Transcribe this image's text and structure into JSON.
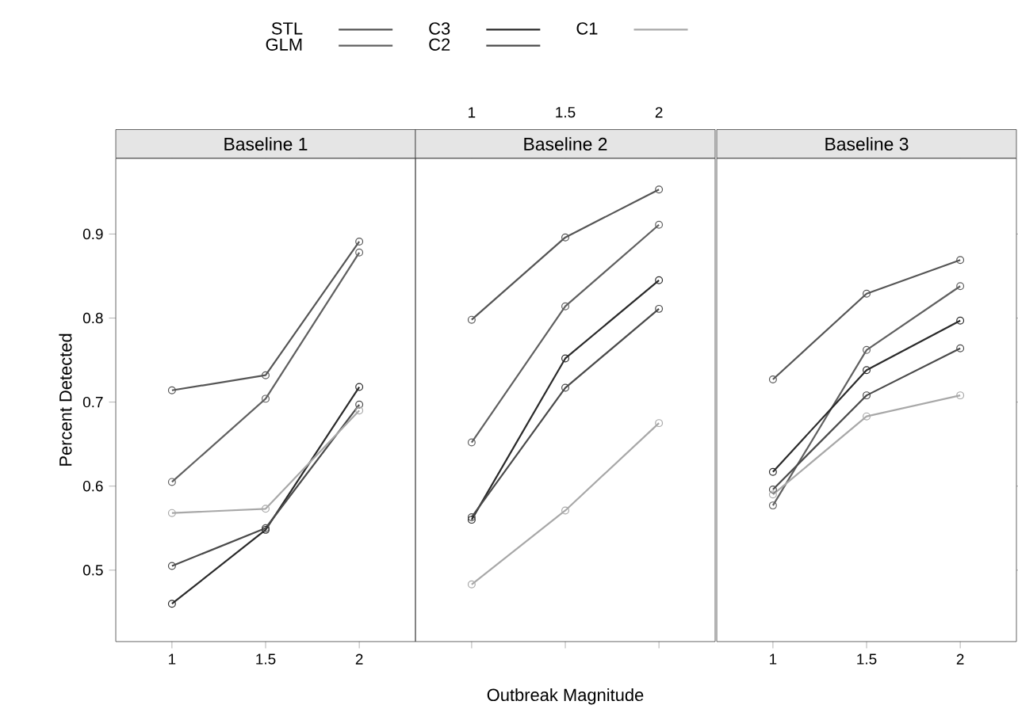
{
  "chart_data": [
    {
      "type": "line",
      "title": "Baseline 1",
      "ylabel": "Percent Detected",
      "x": [
        1,
        1.5,
        2
      ],
      "xlim": [
        0.7,
        2.3
      ],
      "ylim": [
        0.415,
        0.99
      ],
      "xticks": [
        1,
        1.5,
        2
      ],
      "yticks": [
        0.5,
        0.6,
        0.7,
        0.8,
        0.9
      ],
      "marker": "circle",
      "line_style": "solid",
      "legend": "top",
      "grid": false,
      "series": [
        {
          "name": "STL",
          "color": "#555555",
          "values": [
            0.714,
            0.732,
            0.891
          ]
        },
        {
          "name": "GLM",
          "color": "#606060",
          "values": [
            0.605,
            0.704,
            0.878
          ]
        },
        {
          "name": "C3",
          "color": "#2a2a2a",
          "values": [
            0.46,
            0.548,
            0.718
          ]
        },
        {
          "name": "C2",
          "color": "#4a4a4a",
          "values": [
            0.505,
            0.55,
            0.697
          ]
        },
        {
          "name": "C1",
          "color": "#a8a8a8",
          "values": [
            0.568,
            0.573,
            0.69
          ]
        }
      ]
    },
    {
      "type": "line",
      "title": "Baseline 2",
      "xlabel": "Outbreak Magnitude",
      "x": [
        1,
        1.5,
        2
      ],
      "xlim": [
        0.7,
        2.3
      ],
      "ylim": [
        0.415,
        0.99
      ],
      "xticks": [
        1,
        1.5,
        2
      ],
      "yticks": [
        0.5,
        0.6,
        0.7,
        0.8,
        0.9
      ],
      "marker": "circle",
      "line_style": "solid",
      "tick_labels": "x",
      "grid": false,
      "series": [
        {
          "color": "#555555",
          "values": [
            0.798,
            0.896,
            0.953
          ]
        },
        {
          "color": "#606060",
          "values": [
            0.652,
            0.814,
            0.911
          ]
        },
        {
          "color": "#2a2a2a",
          "values": [
            0.56,
            0.752,
            0.845
          ]
        },
        {
          "color": "#4a4a4a",
          "values": [
            0.563,
            0.717,
            0.811
          ]
        },
        {
          "color": "#a8a8a8",
          "values": [
            0.483,
            0.571,
            0.675
          ]
        }
      ]
    },
    {
      "type": "line",
      "title": "Baseline 3",
      "x": [
        1,
        1.5,
        2
      ],
      "xlim": [
        0.7,
        2.3
      ],
      "ylim": [
        0.415,
        0.99
      ],
      "xticks": [
        1,
        1.5,
        2
      ],
      "yticks": [
        0.5,
        0.6,
        0.7,
        0.8,
        0.9
      ],
      "marker": "circle",
      "line_style": "solid",
      "tick_labels": "x",
      "grid": false,
      "series": [
        {
          "color": "#555555",
          "values": [
            0.727,
            0.829,
            0.869
          ]
        },
        {
          "color": "#606060",
          "values": [
            0.577,
            0.762,
            0.838
          ]
        },
        {
          "color": "#2a2a2a",
          "values": [
            0.617,
            0.738,
            0.797
          ]
        },
        {
          "color": "#4a4a4a",
          "values": [
            0.596,
            0.708,
            0.764
          ]
        },
        {
          "color": "#a8a8a8",
          "values": [
            0.59,
            0.683,
            0.708
          ]
        }
      ]
    }
  ]
}
